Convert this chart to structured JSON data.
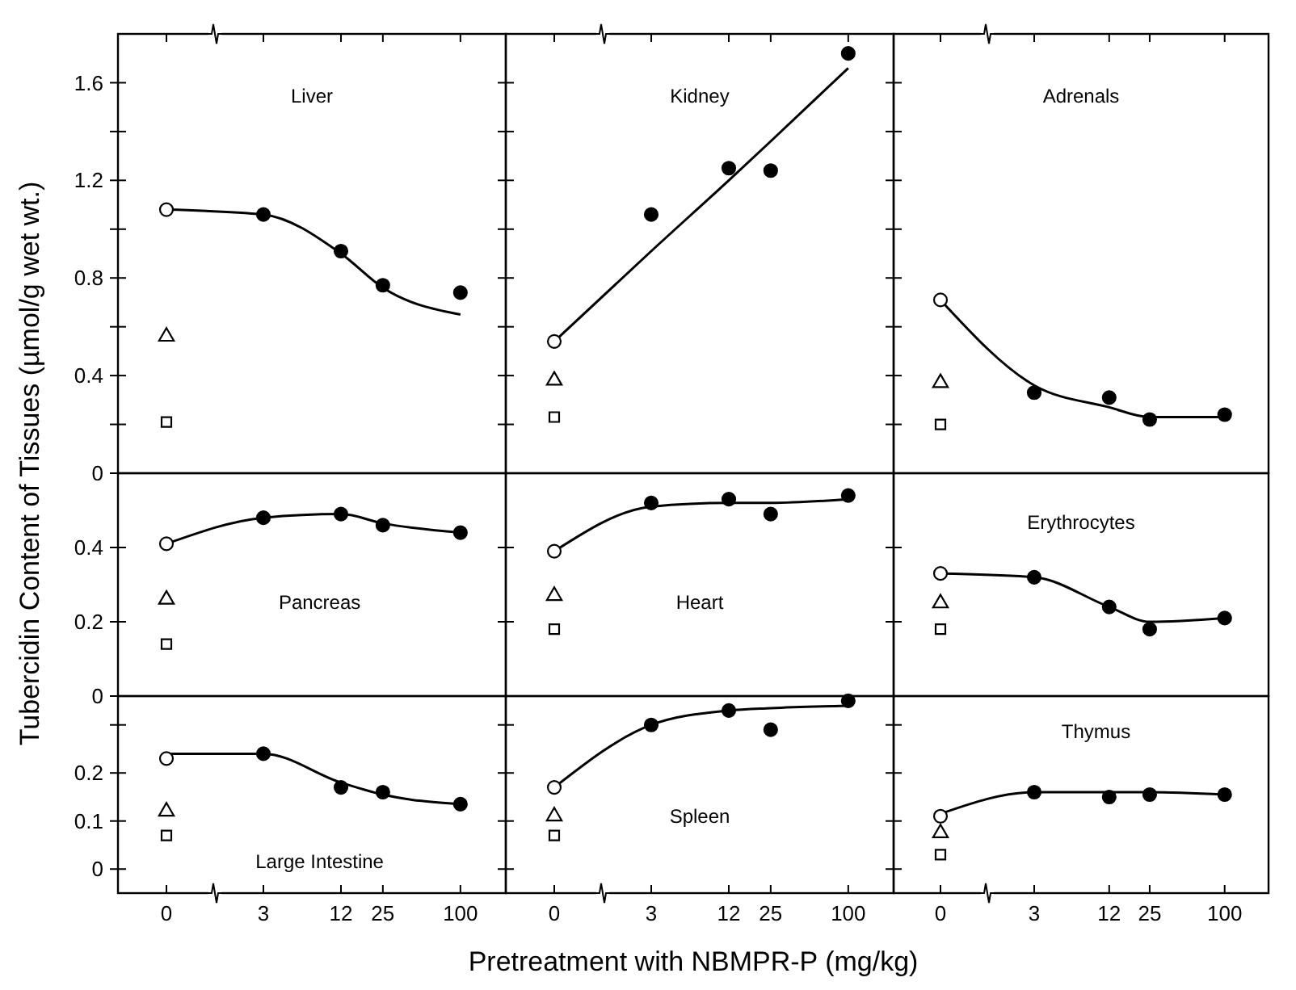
{
  "chart_data": [
    {
      "type": "scatter",
      "title": "Liver",
      "categories": [
        "0",
        "3",
        "12",
        "25",
        "100"
      ],
      "ylim": [
        0,
        1.8
      ],
      "yticks": [
        0,
        {
          "value": 0.2,
          "label": null
        },
        0.4,
        {
          "value": 0.6,
          "label": null
        },
        0.8,
        {
          "value": 1.0,
          "label": null
        },
        1.2,
        {
          "value": 1.4,
          "label": null
        },
        1.6
      ],
      "tick_labels": "y",
      "series": [
        {
          "type": "line",
          "color": "#000000",
          "marker": "none",
          "values": [
            1.08,
            1.06,
            0.9,
            0.76,
            0.65
          ]
        },
        {
          "marker": "circle",
          "color": "#ffffff",
          "values": [
            1.08,
            null,
            null,
            null,
            null
          ]
        },
        {
          "marker": "triangle",
          "color": "#ffffff",
          "values": [
            0.56,
            null,
            null,
            null,
            null
          ]
        },
        {
          "marker": "square",
          "color": "#ffffff",
          "values": [
            0.21,
            null,
            null,
            null,
            null
          ]
        },
        {
          "marker": "circle",
          "color": "#000000",
          "values": [
            null,
            1.06,
            0.91,
            0.77,
            0.74
          ]
        }
      ]
    },
    {
      "type": "scatter",
      "title": "Kidney",
      "categories": [
        "0",
        "3",
        "12",
        "25",
        "100"
      ],
      "ylim": [
        0,
        1.8
      ],
      "yticks": [
        0,
        {
          "value": 0.2,
          "label": null
        },
        0.4,
        {
          "value": 0.6,
          "label": null
        },
        0.8,
        {
          "value": 1.0,
          "label": null
        },
        1.2,
        {
          "value": 1.4,
          "label": null
        },
        1.6
      ],
      "tick_labels": false,
      "series": [
        {
          "type": "line",
          "color": "#000000",
          "marker": "none",
          "values": [
            0.54,
            0.91,
            1.2,
            1.36,
            1.66
          ]
        },
        {
          "marker": "circle",
          "color": "#ffffff",
          "values": [
            0.54,
            null,
            null,
            null,
            null
          ]
        },
        {
          "marker": "triangle",
          "color": "#ffffff",
          "values": [
            0.38,
            null,
            null,
            null,
            null
          ]
        },
        {
          "marker": "square",
          "color": "#ffffff",
          "values": [
            0.23,
            null,
            null,
            null,
            null
          ]
        },
        {
          "marker": "circle",
          "color": "#000000",
          "values": [
            null,
            1.06,
            1.25,
            1.24,
            1.72
          ]
        }
      ]
    },
    {
      "type": "scatter",
      "title": "Adrenals",
      "categories": [
        "0",
        "3",
        "12",
        "25",
        "100"
      ],
      "ylim": [
        0,
        1.8
      ],
      "yticks": [
        0,
        {
          "value": 0.2,
          "label": null
        },
        0.4,
        {
          "value": 0.6,
          "label": null
        },
        0.8,
        {
          "value": 1.0,
          "label": null
        },
        1.2,
        {
          "value": 1.4,
          "label": null
        },
        1.6
      ],
      "tick_labels": false,
      "series": [
        {
          "type": "line",
          "color": "#000000",
          "marker": "none",
          "values": [
            0.71,
            0.36,
            0.27,
            0.23,
            0.23
          ]
        },
        {
          "marker": "circle",
          "color": "#ffffff",
          "values": [
            0.71,
            null,
            null,
            null,
            null
          ]
        },
        {
          "marker": "triangle",
          "color": "#ffffff",
          "values": [
            0.37,
            null,
            null,
            null,
            null
          ]
        },
        {
          "marker": "square",
          "color": "#ffffff",
          "values": [
            0.2,
            null,
            null,
            null,
            null
          ]
        },
        {
          "marker": "circle",
          "color": "#000000",
          "values": [
            null,
            0.33,
            0.31,
            0.22,
            0.24
          ]
        }
      ]
    },
    {
      "type": "scatter",
      "title": "Pancreas",
      "ylabel": "Tubercidin Content of Tissues (µmol/g wet wt.)",
      "categories": [
        "0",
        "3",
        "12",
        "25",
        "100"
      ],
      "ylim": [
        0,
        0.6
      ],
      "yticks": [
        0,
        0.2,
        0.4
      ],
      "tick_labels": "y",
      "series": [
        {
          "type": "line",
          "color": "#000000",
          "marker": "none",
          "values": [
            0.41,
            0.48,
            0.49,
            0.465,
            0.44
          ]
        },
        {
          "marker": "circle",
          "color": "#ffffff",
          "values": [
            0.41,
            null,
            null,
            null,
            null
          ]
        },
        {
          "marker": "triangle",
          "color": "#ffffff",
          "values": [
            0.26,
            null,
            null,
            null,
            null
          ]
        },
        {
          "marker": "square",
          "color": "#ffffff",
          "values": [
            0.14,
            null,
            null,
            null,
            null
          ]
        },
        {
          "marker": "circle",
          "color": "#000000",
          "values": [
            null,
            0.48,
            0.49,
            0.46,
            0.44
          ]
        }
      ]
    },
    {
      "type": "scatter",
      "title": "Heart",
      "categories": [
        "0",
        "3",
        "12",
        "25",
        "100"
      ],
      "ylim": [
        0,
        0.6
      ],
      "yticks": [
        0,
        0.2,
        0.4
      ],
      "tick_labels": false,
      "series": [
        {
          "type": "line",
          "color": "#000000",
          "marker": "none",
          "values": [
            0.39,
            0.51,
            0.52,
            0.52,
            0.53
          ]
        },
        {
          "marker": "circle",
          "color": "#ffffff",
          "values": [
            0.39,
            null,
            null,
            null,
            null
          ]
        },
        {
          "marker": "triangle",
          "color": "#ffffff",
          "values": [
            0.27,
            null,
            null,
            null,
            null
          ]
        },
        {
          "marker": "square",
          "color": "#ffffff",
          "values": [
            0.18,
            null,
            null,
            null,
            null
          ]
        },
        {
          "marker": "circle",
          "color": "#000000",
          "values": [
            null,
            0.52,
            0.53,
            0.49,
            0.54
          ]
        }
      ]
    },
    {
      "type": "scatter",
      "title": "Erythrocytes",
      "categories": [
        "0",
        "3",
        "12",
        "25",
        "100"
      ],
      "ylim": [
        0,
        0.6
      ],
      "yticks": [
        0,
        0.2,
        0.4
      ],
      "tick_labels": false,
      "series": [
        {
          "type": "line",
          "color": "#000000",
          "marker": "none",
          "values": [
            0.33,
            0.32,
            0.24,
            0.2,
            0.21
          ]
        },
        {
          "marker": "circle",
          "color": "#ffffff",
          "values": [
            0.33,
            null,
            null,
            null,
            null
          ]
        },
        {
          "marker": "triangle",
          "color": "#ffffff",
          "values": [
            0.25,
            null,
            null,
            null,
            null
          ]
        },
        {
          "marker": "square",
          "color": "#ffffff",
          "values": [
            0.18,
            null,
            null,
            null,
            null
          ]
        },
        {
          "marker": "circle",
          "color": "#000000",
          "values": [
            null,
            0.32,
            0.24,
            0.18,
            0.21
          ]
        }
      ]
    },
    {
      "type": "scatter",
      "title": "Large Intestine",
      "categories": [
        "0",
        "3",
        "12",
        "25",
        "100"
      ],
      "ylim": [
        -0.05,
        0.36
      ],
      "yticks": [
        0,
        0.1,
        0.2,
        {
          "value": 0.3,
          "label": null
        }
      ],
      "series": [
        {
          "type": "line",
          "color": "#000000",
          "marker": "none",
          "values": [
            0.24,
            0.24,
            0.18,
            0.155,
            0.135
          ]
        },
        {
          "marker": "circle",
          "color": "#ffffff",
          "values": [
            0.23,
            null,
            null,
            null,
            null
          ]
        },
        {
          "marker": "triangle",
          "color": "#ffffff",
          "values": [
            0.12,
            null,
            null,
            null,
            null
          ]
        },
        {
          "marker": "square",
          "color": "#ffffff",
          "values": [
            0.07,
            null,
            null,
            null,
            null
          ]
        },
        {
          "marker": "circle",
          "color": "#000000",
          "values": [
            null,
            0.24,
            0.17,
            0.16,
            0.135
          ]
        }
      ]
    },
    {
      "type": "scatter",
      "title": "Spleen",
      "xlabel": "Pretreatment with NBMPR-P (mg/kg)",
      "categories": [
        "0",
        "3",
        "12",
        "25",
        "100"
      ],
      "ylim": [
        -0.05,
        0.36
      ],
      "yticks": [
        0,
        0.1,
        0.2,
        {
          "value": 0.3,
          "label": null
        }
      ],
      "tick_labels": "x",
      "series": [
        {
          "type": "line",
          "color": "#000000",
          "marker": "none",
          "values": [
            0.17,
            0.3,
            0.33,
            0.335,
            0.34
          ]
        },
        {
          "marker": "circle",
          "color": "#ffffff",
          "values": [
            0.17,
            null,
            null,
            null,
            null
          ]
        },
        {
          "marker": "triangle",
          "color": "#ffffff",
          "values": [
            0.11,
            null,
            null,
            null,
            null
          ]
        },
        {
          "marker": "square",
          "color": "#ffffff",
          "values": [
            0.07,
            null,
            null,
            null,
            null
          ]
        },
        {
          "marker": "circle",
          "color": "#000000",
          "values": [
            null,
            0.3,
            0.33,
            0.29,
            0.35
          ]
        }
      ]
    },
    {
      "type": "scatter",
      "title": "Thymus",
      "categories": [
        "0",
        "3",
        "12",
        "25",
        "100"
      ],
      "ylim": [
        -0.05,
        0.36
      ],
      "yticks": [
        0,
        0.1,
        0.2,
        {
          "value": 0.3,
          "label": null
        }
      ],
      "tick_labels": "x",
      "series": [
        {
          "type": "line",
          "color": "#000000",
          "marker": "none",
          "values": [
            0.115,
            0.16,
            0.16,
            0.16,
            0.155
          ]
        },
        {
          "marker": "circle",
          "color": "#ffffff",
          "values": [
            0.11,
            null,
            null,
            null,
            null
          ]
        },
        {
          "marker": "triangle",
          "color": "#ffffff",
          "values": [
            0.075,
            null,
            null,
            null,
            null
          ]
        },
        {
          "marker": "square",
          "color": "#ffffff",
          "values": [
            0.03,
            null,
            null,
            null,
            null
          ]
        },
        {
          "marker": "circle",
          "color": "#000000",
          "values": [
            null,
            0.16,
            0.15,
            0.155,
            0.155
          ]
        }
      ]
    }
  ]
}
